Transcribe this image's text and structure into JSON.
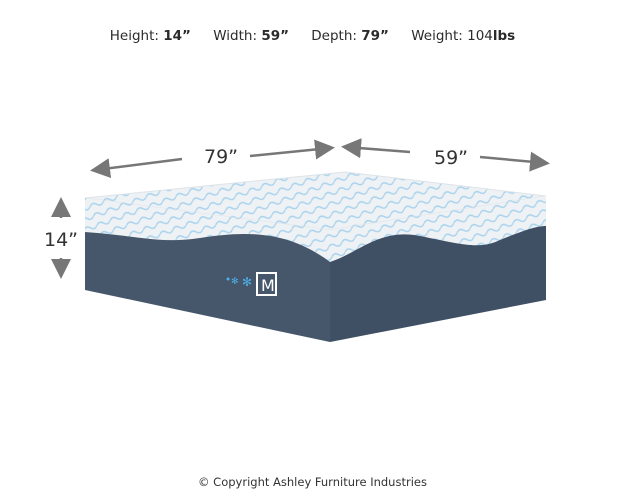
{
  "specs": {
    "height": {
      "label": "Height:",
      "value": "14”"
    },
    "width": {
      "label": "Width:",
      "value": "59”"
    },
    "depth": {
      "label": "Depth:",
      "value": "79”"
    },
    "weight": {
      "label": "Weight:",
      "value": "104",
      "unit": "lbs"
    }
  },
  "dimensions": {
    "depth": "79”",
    "width": "59”",
    "height": "14”"
  },
  "logo_letter": "M",
  "copyright": "© Copyright Ashley Furniture Industries",
  "colors": {
    "base": "#46566b",
    "top": "#eef2f5",
    "accent": "#3fa3dc",
    "arrow": "#777777"
  }
}
